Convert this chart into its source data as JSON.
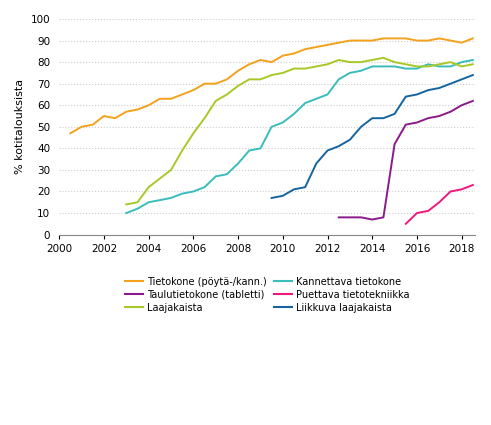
{
  "ylabel": "% kotitalouksista",
  "xlim": [
    2000,
    2018.6
  ],
  "ylim": [
    0,
    100
  ],
  "yticks": [
    0,
    10,
    20,
    30,
    40,
    50,
    60,
    70,
    80,
    90,
    100
  ],
  "xticks": [
    2000,
    2002,
    2004,
    2006,
    2008,
    2010,
    2012,
    2014,
    2016,
    2018
  ],
  "background_color": "#ffffff",
  "grid_color": "#cccccc",
  "series": [
    {
      "name": "Tietokone (pöytä-/kann.)",
      "color": "#f4a11d",
      "x": [
        2000.5,
        2001.0,
        2001.5,
        2002.0,
        2002.5,
        2003.0,
        2003.5,
        2004.0,
        2004.5,
        2005.0,
        2005.5,
        2006.0,
        2006.5,
        2007.0,
        2007.5,
        2008.0,
        2008.5,
        2009.0,
        2009.5,
        2010.0,
        2010.5,
        2011.0,
        2011.5,
        2012.0,
        2012.5,
        2013.0,
        2013.5,
        2014.0,
        2014.5,
        2015.0,
        2015.5,
        2016.0,
        2016.5,
        2017.0,
        2017.5,
        2018.0,
        2018.5
      ],
      "y": [
        47,
        50,
        51,
        55,
        54,
        57,
        58,
        60,
        63,
        63,
        65,
        67,
        70,
        70,
        72,
        76,
        79,
        81,
        80,
        83,
        84,
        86,
        87,
        88,
        89,
        90,
        90,
        90,
        91,
        91,
        91,
        90,
        90,
        91,
        90,
        89,
        91
      ]
    },
    {
      "name": "Kannettava tietokone",
      "color": "#3abcbc",
      "x": [
        2003.0,
        2003.5,
        2004.0,
        2004.5,
        2005.0,
        2005.5,
        2006.0,
        2006.5,
        2007.0,
        2007.5,
        2008.0,
        2008.5,
        2009.0,
        2009.5,
        2010.0,
        2010.5,
        2011.0,
        2011.5,
        2012.0,
        2012.5,
        2013.0,
        2013.5,
        2014.0,
        2014.5,
        2015.0,
        2015.5,
        2016.0,
        2016.5,
        2017.0,
        2017.5,
        2018.0,
        2018.5
      ],
      "y": [
        10,
        12,
        15,
        16,
        17,
        19,
        20,
        22,
        27,
        28,
        33,
        39,
        40,
        50,
        52,
        56,
        61,
        63,
        65,
        72,
        75,
        76,
        78,
        78,
        78,
        77,
        77,
        79,
        78,
        78,
        80,
        81
      ]
    },
    {
      "name": "Taulutietokone (tabletti)",
      "color": "#8b1a8b",
      "x": [
        2012.5,
        2013.0,
        2013.5,
        2014.0,
        2014.5,
        2015.0,
        2015.5,
        2016.0,
        2016.5,
        2017.0,
        2017.5,
        2018.0,
        2018.5
      ],
      "y": [
        8,
        8,
        8,
        7,
        8,
        42,
        51,
        52,
        54,
        55,
        57,
        60,
        62
      ]
    },
    {
      "name": "Puettava tietotekniikka",
      "color": "#f0187c",
      "x": [
        2015.5,
        2016.0,
        2016.5,
        2017.0,
        2017.5,
        2018.0,
        2018.5
      ],
      "y": [
        5,
        10,
        11,
        15,
        20,
        21,
        23
      ]
    },
    {
      "name": "Laajakaista",
      "color": "#a8c828",
      "x": [
        2003.0,
        2003.5,
        2004.0,
        2004.5,
        2005.0,
        2005.5,
        2006.0,
        2006.5,
        2007.0,
        2007.5,
        2008.0,
        2008.5,
        2009.0,
        2009.5,
        2010.0,
        2010.5,
        2011.0,
        2011.5,
        2012.0,
        2012.5,
        2013.0,
        2013.5,
        2014.0,
        2014.5,
        2015.0,
        2015.5,
        2016.0,
        2016.5,
        2017.0,
        2017.5,
        2018.0,
        2018.5
      ],
      "y": [
        14,
        15,
        22,
        26,
        30,
        39,
        47,
        54,
        62,
        65,
        69,
        72,
        72,
        74,
        75,
        77,
        77,
        78,
        79,
        81,
        80,
        80,
        81,
        82,
        80,
        79,
        78,
        78,
        79,
        80,
        78,
        79
      ]
    },
    {
      "name": "Liikkuva laajakaista",
      "color": "#1464a0",
      "x": [
        2009.5,
        2010.0,
        2010.5,
        2011.0,
        2011.5,
        2012.0,
        2012.5,
        2013.0,
        2013.5,
        2014.0,
        2014.5,
        2015.0,
        2015.5,
        2016.0,
        2016.5,
        2017.0,
        2017.5,
        2018.0,
        2018.5
      ],
      "y": [
        17,
        18,
        21,
        22,
        33,
        39,
        41,
        44,
        50,
        54,
        54,
        56,
        64,
        65,
        67,
        68,
        70,
        72,
        74
      ]
    }
  ],
  "legend_order": [
    [
      "Tietokone (pöytä-/kann.)",
      "Kannettava tietokone"
    ],
    [
      "Taulutietokone (tabletti)",
      "Puettava tietotekniikka"
    ],
    [
      "Laajakaista",
      "Liikkuva laajakaista"
    ]
  ]
}
